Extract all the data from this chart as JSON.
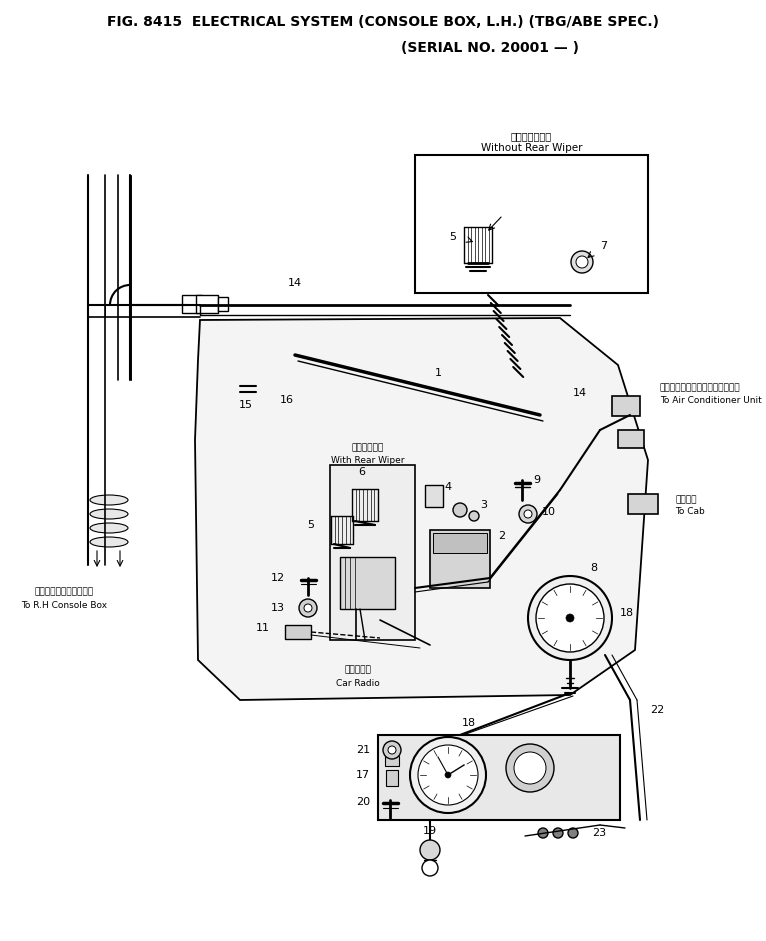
{
  "title_line1": "FIG. 8415  ELECTRICAL SYSTEM (CONSOLE BOX, L.H.) (TBG/ABE SPEC.)",
  "title_line2": "(SERIAL NO. 20001 — )",
  "bg_color": "#ffffff",
  "fig_width": 7.66,
  "fig_height": 9.41,
  "dpi": 100,
  "labels": {
    "14a": "14",
    "14b": "14",
    "1": "1",
    "15": "15",
    "16": "16",
    "5a": "5",
    "7": "7",
    "without_rear_wiper_jp": "リヤワイパなし",
    "without_rear_wiper_en": "Without Rear Wiper",
    "with_rear_wiper_jp": "リヤワイパ付",
    "with_rear_wiper_en": "With Rear Wiper",
    "air_cond_jp": "エアーコンディショナユニットへ",
    "air_cond_en": "To Air Conditioner Unit",
    "5b": "5",
    "6": "6",
    "4": "4",
    "3": "3",
    "9": "9",
    "10": "10",
    "cab_jp": "キャブへ",
    "cab_en": "To Cab",
    "2": "2",
    "8": "8",
    "12": "12",
    "13": "13",
    "11": "11",
    "car_radio_jp": "カーラジオ",
    "car_radio_en": "Car Radio",
    "rh_console_jp": "右コンソールボックスへ",
    "rh_console_en": "To R.H Console Box",
    "18a": "18",
    "18b": "18",
    "22": "22",
    "21": "21",
    "17": "17",
    "20": "20",
    "19": "19",
    "23": "23"
  }
}
